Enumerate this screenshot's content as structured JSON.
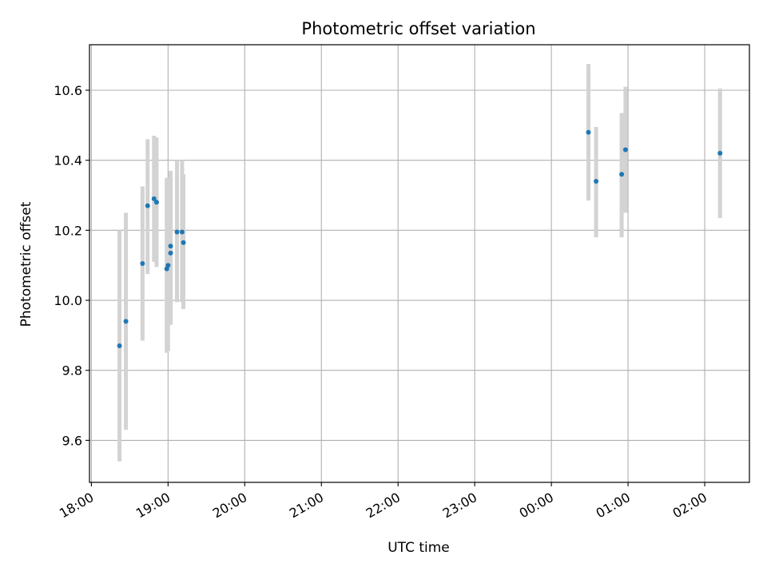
{
  "chart_data": {
    "type": "scatter",
    "title": "Photometric offset variation",
    "xlabel": "UTC time",
    "ylabel": "Photometric offset",
    "x_axis_kind": "time",
    "xlim": [
      "18:00",
      "02:35"
    ],
    "ylim": [
      9.48,
      10.73
    ],
    "grid": true,
    "x_ticks": [
      "18:00",
      "19:00",
      "20:00",
      "21:00",
      "22:00",
      "23:00",
      "00:00",
      "01:00",
      "02:00"
    ],
    "y_ticks": [
      9.6,
      9.8,
      10.0,
      10.2,
      10.4,
      10.6
    ],
    "points_color": "#1f77b4",
    "errorbar_color": "#d3d3d3",
    "points": [
      {
        "x": "18:22",
        "y": 9.87,
        "ylow": 9.54,
        "yhigh": 10.2
      },
      {
        "x": "18:27",
        "y": 9.94,
        "ylow": 9.63,
        "yhigh": 10.25
      },
      {
        "x": "18:40",
        "y": 10.105,
        "ylow": 9.885,
        "yhigh": 10.325
      },
      {
        "x": "18:44",
        "y": 10.27,
        "ylow": 10.075,
        "yhigh": 10.46
      },
      {
        "x": "18:49",
        "y": 10.29,
        "ylow": 10.11,
        "yhigh": 10.47
      },
      {
        "x": "18:51",
        "y": 10.28,
        "ylow": 10.095,
        "yhigh": 10.465
      },
      {
        "x": "18:59",
        "y": 10.09,
        "ylow": 9.85,
        "yhigh": 10.35
      },
      {
        "x": "19:00",
        "y": 10.1,
        "ylow": 9.855,
        "yhigh": 10.345
      },
      {
        "x": "19:02",
        "y": 10.155,
        "ylow": 9.93,
        "yhigh": 10.37
      },
      {
        "x": "19:02",
        "y": 10.135,
        "ylow": 9.935,
        "yhigh": 10.34
      },
      {
        "x": "19:07",
        "y": 10.195,
        "ylow": 9.995,
        "yhigh": 10.4
      },
      {
        "x": "19:11",
        "y": 10.195,
        "ylow": 9.995,
        "yhigh": 10.4
      },
      {
        "x": "19:12",
        "y": 10.165,
        "ylow": 9.975,
        "yhigh": 10.36
      },
      {
        "x": "00:29",
        "y": 10.48,
        "ylow": 10.285,
        "yhigh": 10.675
      },
      {
        "x": "00:35",
        "y": 10.34,
        "ylow": 10.18,
        "yhigh": 10.495
      },
      {
        "x": "00:55",
        "y": 10.36,
        "ylow": 10.18,
        "yhigh": 10.535
      },
      {
        "x": "00:58",
        "y": 10.43,
        "ylow": 10.25,
        "yhigh": 10.61
      },
      {
        "x": "02:12",
        "y": 10.42,
        "ylow": 10.235,
        "yhigh": 10.605
      }
    ]
  }
}
